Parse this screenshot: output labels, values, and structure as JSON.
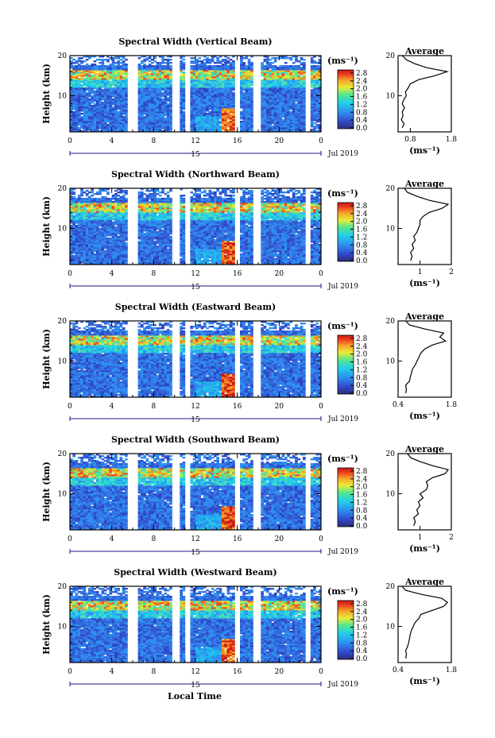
{
  "figure": {
    "xlabel": "Local Time",
    "date_label": "Jul 2019",
    "day_label": "15",
    "cbar_unit": "(ms⁻¹)",
    "avg_title": "Average",
    "avg_unit": "(ms⁻¹)",
    "ylabel": "Height (km)"
  },
  "chart_data": [
    {
      "type": "heatmap",
      "title": "Spectral Width (Vertical Beam)",
      "ylabel": "Height (km)",
      "xlabel": "",
      "x_ticks": [
        "0",
        "4",
        "8",
        "12",
        "16",
        "20",
        "0"
      ],
      "y_ticks": [
        "10",
        "20"
      ],
      "xlim": [
        0,
        24
      ],
      "ylim": [
        1,
        20
      ],
      "colorbar": {
        "ticks": [
          "0.0",
          "0.4",
          "0.8",
          "1.2",
          "1.6",
          "2.0",
          "2.4",
          "2.8"
        ],
        "range": [
          0,
          3.0
        ]
      },
      "average_profile": {
        "title": "Average",
        "x_ticks": [
          "0.8",
          "1.8"
        ],
        "xlim": [
          0.5,
          1.8
        ],
        "y_ticks": [
          "10",
          "20"
        ],
        "ylim": [
          1,
          20
        ],
        "height": [
          2,
          3,
          4,
          5,
          6,
          7,
          8,
          9,
          10,
          11,
          12,
          13,
          14,
          15,
          16,
          17,
          18,
          19,
          20
        ],
        "value": [
          0.6,
          0.65,
          0.58,
          0.62,
          0.6,
          0.66,
          0.6,
          0.64,
          0.7,
          0.68,
          0.75,
          0.8,
          1.0,
          1.4,
          1.7,
          1.2,
          0.9,
          0.7,
          0.6
        ]
      }
    },
    {
      "type": "heatmap",
      "title": "Spectral Width (Northward Beam)",
      "ylabel": "Height (km)",
      "xlabel": "",
      "x_ticks": [
        "0",
        "4",
        "8",
        "12",
        "16",
        "20",
        "0"
      ],
      "y_ticks": [
        "10",
        "20"
      ],
      "xlim": [
        0,
        24
      ],
      "ylim": [
        1,
        20
      ],
      "colorbar": {
        "ticks": [
          "0.0",
          "0.4",
          "0.8",
          "1.2",
          "1.6",
          "2.0",
          "2.4",
          "2.8"
        ],
        "range": [
          0,
          3.0
        ]
      },
      "average_profile": {
        "title": "Average",
        "x_ticks": [
          "1",
          "2"
        ],
        "xlim": [
          0.3,
          2.0
        ],
        "y_ticks": [
          "10",
          "20"
        ],
        "ylim": [
          1,
          20
        ],
        "height": [
          2,
          3,
          4,
          5,
          6,
          7,
          8,
          9,
          10,
          11,
          12,
          13,
          14,
          15,
          16,
          17,
          18,
          19,
          20
        ],
        "value": [
          0.7,
          0.75,
          0.7,
          0.8,
          0.75,
          0.85,
          0.8,
          0.9,
          0.95,
          1.0,
          1.0,
          1.1,
          1.3,
          1.7,
          1.9,
          1.3,
          0.9,
          0.6,
          0.5
        ]
      }
    },
    {
      "type": "heatmap",
      "title": "Spectral Width (Eastward Beam)",
      "ylabel": "Height (km)",
      "xlabel": "",
      "x_ticks": [
        "0",
        "4",
        "8",
        "12",
        "16",
        "20",
        "0"
      ],
      "y_ticks": [
        "10",
        "20"
      ],
      "xlim": [
        0,
        24
      ],
      "ylim": [
        1,
        20
      ],
      "colorbar": {
        "ticks": [
          "0.0",
          "0.4",
          "0.8",
          "1.2",
          "1.6",
          "2.0",
          "2.4",
          "2.8"
        ],
        "range": [
          0,
          3.0
        ]
      },
      "average_profile": {
        "title": "Average",
        "x_ticks": [
          "0.4",
          "1.8"
        ],
        "xlim": [
          0.4,
          1.8
        ],
        "y_ticks": [
          "10",
          "20"
        ],
        "ylim": [
          1,
          20
        ],
        "height": [
          2,
          3,
          4,
          5,
          6,
          7,
          8,
          9,
          10,
          11,
          12,
          13,
          14,
          15,
          16,
          17,
          18,
          19,
          20
        ],
        "value": [
          0.6,
          0.62,
          0.6,
          0.7,
          0.72,
          0.75,
          0.78,
          0.85,
          0.9,
          0.95,
          1.0,
          1.1,
          1.3,
          1.65,
          1.5,
          1.6,
          1.1,
          0.7,
          0.6
        ]
      }
    },
    {
      "type": "heatmap",
      "title": "Spectral Width (Southward Beam)",
      "ylabel": "Height (km)",
      "xlabel": "",
      "x_ticks": [
        "0",
        "4",
        "8",
        "12",
        "16",
        "20",
        "0"
      ],
      "y_ticks": [
        "10",
        "20"
      ],
      "xlim": [
        0,
        24
      ],
      "ylim": [
        1,
        20
      ],
      "colorbar": {
        "ticks": [
          "0.0",
          "0.4",
          "0.8",
          "1.2",
          "1.6",
          "2.0",
          "2.4",
          "2.8"
        ],
        "range": [
          0,
          3.0
        ]
      },
      "average_profile": {
        "title": "Average",
        "x_ticks": [
          "1",
          "2"
        ],
        "xlim": [
          0.3,
          2.0
        ],
        "y_ticks": [
          "10",
          "20"
        ],
        "ylim": [
          1,
          20
        ],
        "height": [
          2,
          3,
          4,
          5,
          6,
          7,
          8,
          9,
          10,
          11,
          12,
          13,
          14,
          15,
          16,
          17,
          18,
          19,
          20
        ],
        "value": [
          0.8,
          0.85,
          0.8,
          0.95,
          0.9,
          1.0,
          0.95,
          1.1,
          1.0,
          1.2,
          1.25,
          1.2,
          1.4,
          1.8,
          1.9,
          1.4,
          1.0,
          0.7,
          0.6
        ]
      }
    },
    {
      "type": "heatmap",
      "title": "Spectral Width (Westward Beam)",
      "ylabel": "Height (km)",
      "xlabel": "Local Time",
      "x_ticks": [
        "0",
        "4",
        "8",
        "12",
        "16",
        "20",
        "0"
      ],
      "y_ticks": [
        "10",
        "20"
      ],
      "xlim": [
        0,
        24
      ],
      "ylim": [
        1,
        20
      ],
      "colorbar": {
        "ticks": [
          "0.0",
          "0.4",
          "0.8",
          "1.2",
          "1.6",
          "2.0",
          "2.4",
          "2.8"
        ],
        "range": [
          0,
          3.0
        ]
      },
      "average_profile": {
        "title": "Average",
        "x_ticks": [
          "0.4",
          "1.8"
        ],
        "xlim": [
          0.4,
          1.8
        ],
        "y_ticks": [
          "10",
          "20"
        ],
        "ylim": [
          1,
          20
        ],
        "height": [
          2,
          3,
          4,
          5,
          6,
          7,
          8,
          9,
          10,
          11,
          12,
          13,
          14,
          15,
          16,
          17,
          18,
          19,
          20
        ],
        "value": [
          0.6,
          0.62,
          0.6,
          0.65,
          0.68,
          0.7,
          0.72,
          0.75,
          0.8,
          0.85,
          0.95,
          1.0,
          1.3,
          1.6,
          1.7,
          1.55,
          1.0,
          0.6,
          0.5
        ]
      }
    }
  ]
}
